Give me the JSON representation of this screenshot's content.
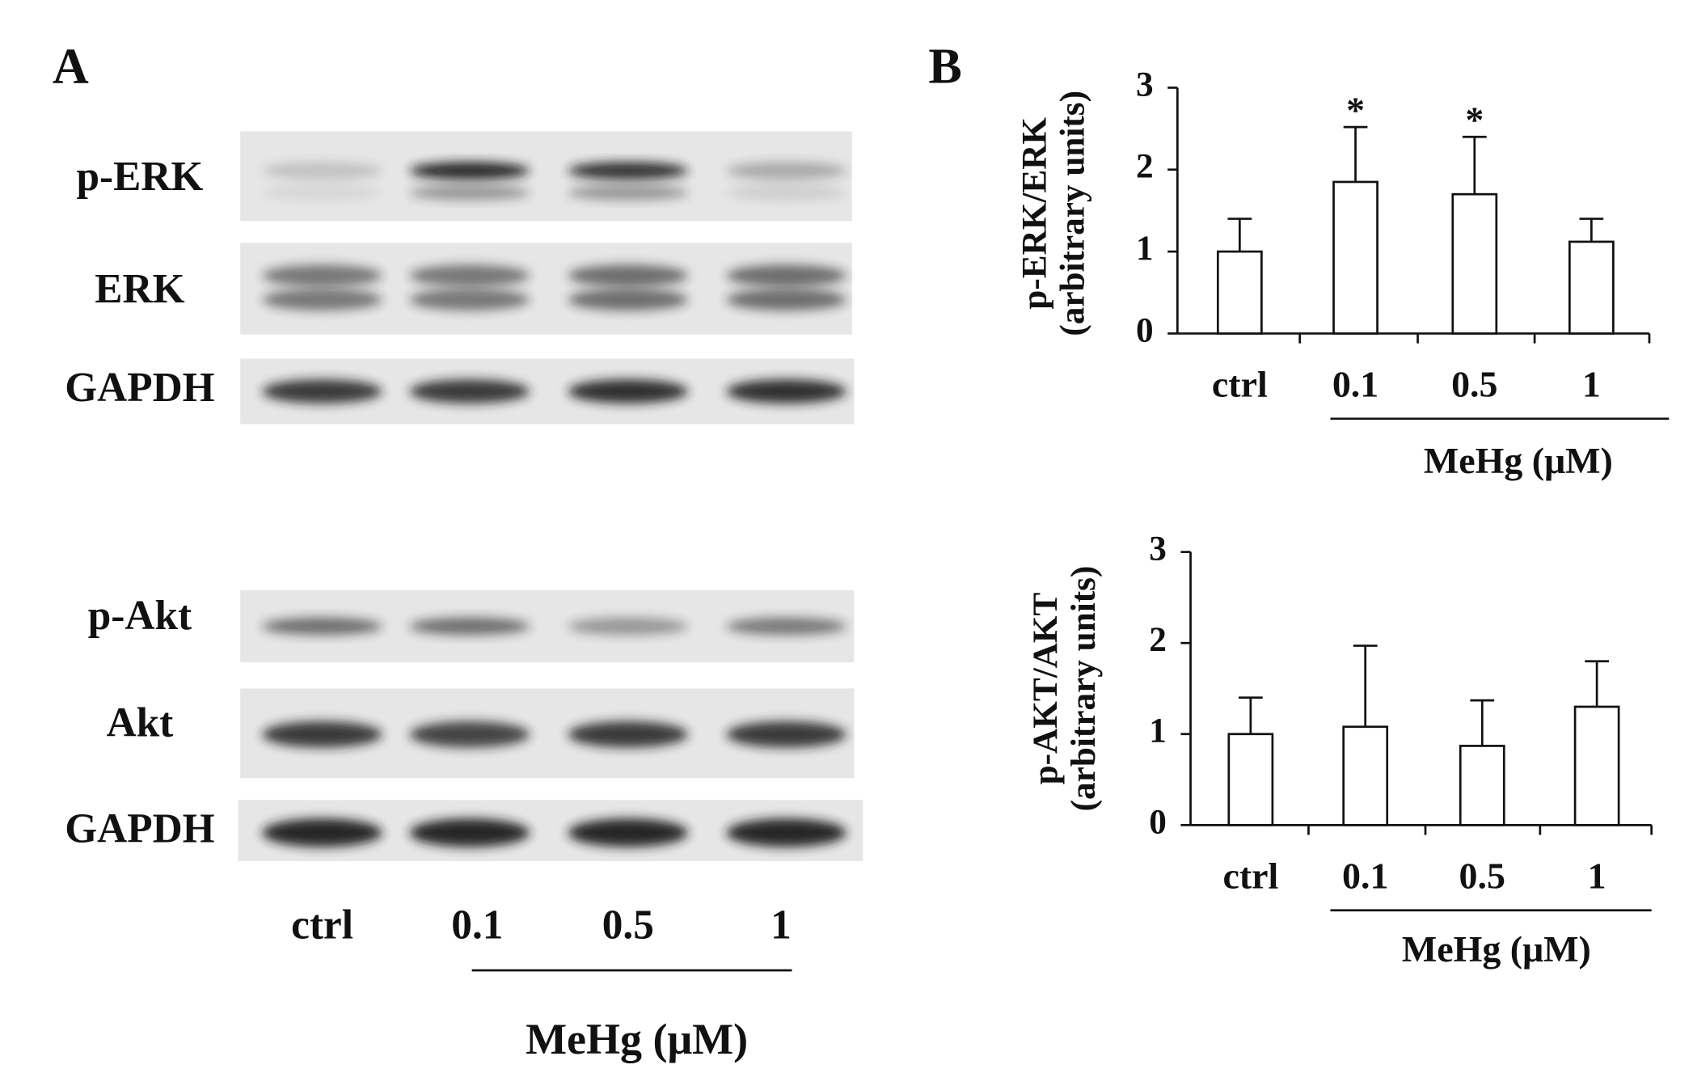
{
  "panel_a": {
    "label": "A",
    "blot_rows": [
      "p-ERK",
      "ERK",
      "GAPDH",
      "p-Akt",
      "Akt",
      "GAPDH"
    ],
    "lanes": [
      "ctrl",
      "0.1",
      "0.5",
      "1"
    ],
    "treatment": "MeHg (μM)"
  },
  "panel_b": {
    "label": "B"
  },
  "chart_data": [
    {
      "type": "bar",
      "y_label": [
        "p-ERK/ERK",
        "(arbitrary units)"
      ],
      "categories": [
        "ctrl",
        "0.1",
        "0.5",
        "1"
      ],
      "values": [
        1.0,
        1.85,
        1.7,
        1.12
      ],
      "errors": [
        0.4,
        0.67,
        0.7,
        0.28
      ],
      "significance": [
        null,
        "*",
        "*",
        null
      ],
      "xlabel": "MeHg (μM)",
      "ylim": [
        0,
        3
      ],
      "yticks": [
        0,
        1,
        2,
        3
      ],
      "color": "#ffffff"
    },
    {
      "type": "bar",
      "y_label": [
        "p-AKT/AKT",
        "(arbitrary units)"
      ],
      "categories": [
        "ctrl",
        "0.1",
        "0.5",
        "1"
      ],
      "values": [
        1.0,
        1.08,
        0.87,
        1.3
      ],
      "errors": [
        0.4,
        0.89,
        0.5,
        0.5
      ],
      "significance": [
        null,
        null,
        null,
        null
      ],
      "xlabel": "MeHg (μM)",
      "ylim": [
        0,
        3
      ],
      "yticks": [
        0,
        1,
        2,
        3
      ],
      "color": "#ffffff"
    }
  ]
}
